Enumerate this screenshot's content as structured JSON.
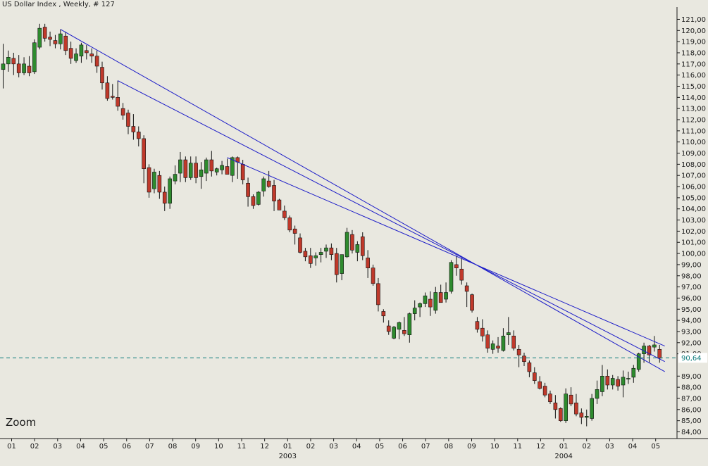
{
  "header": {
    "title": "US Dollar Index , Weekly, # 127"
  },
  "overlay": {
    "zoom_label": "Zoom"
  },
  "colors": {
    "background": "#e9e8e0",
    "up": "#2e8b2e",
    "down": "#c0392b",
    "trendline": "#1c1cc8",
    "last_price_line": "#0b7a7a",
    "axis_text": "#1a1a1a"
  },
  "chart_data": {
    "type": "candlestick",
    "title": "US Dollar Index , Weekly, # 127",
    "ylim": [
      84,
      121.5
    ],
    "y_ticks": [
      "84,00",
      "85,00",
      "86,00",
      "87,00",
      "88,00",
      "89,00",
      "91,00",
      "92,00",
      "93,00",
      "94,00",
      "95,00",
      "96,00",
      "97,00",
      "98,00",
      "99,00",
      "100,00",
      "101,00",
      "102,00",
      "103,00",
      "104,00",
      "105,00",
      "106,00",
      "107,00",
      "108,00",
      "109,00",
      "110,00",
      "111,00",
      "112,00",
      "113,00",
      "114,00",
      "115,00",
      "116,00",
      "117,00",
      "118,00",
      "119,00",
      "120,00",
      "121,00"
    ],
    "x_ticks": [
      "01",
      "02",
      "03",
      "04",
      "05",
      "06",
      "07",
      "08",
      "09",
      "10",
      "11",
      "12",
      "01",
      "02",
      "03",
      "04",
      "05",
      "06",
      "07",
      "08",
      "09",
      "10",
      "11",
      "12",
      "01",
      "02",
      "03",
      "04",
      "05"
    ],
    "year_labels": [
      {
        "label": "2003",
        "tick_index": 12
      },
      {
        "label": "2004",
        "tick_index": 24
      }
    ],
    "last_price": {
      "value": 90.64,
      "label": "90,64"
    },
    "trendlines": [
      {
        "from": {
          "week": 11,
          "value": 120.1
        },
        "to": {
          "week": 127,
          "value": 89.4
        }
      },
      {
        "from": {
          "week": 22,
          "value": 115.5
        },
        "to": {
          "week": 127,
          "value": 90.3
        }
      },
      {
        "from": {
          "week": 43,
          "value": 108.6
        },
        "to": {
          "week": 127,
          "value": 91.7
        }
      }
    ],
    "candles": [
      [
        116.5,
        118.8,
        114.8,
        117.0
      ],
      [
        117.0,
        118.2,
        116.3,
        117.6
      ],
      [
        117.5,
        118.0,
        116.0,
        117.0
      ],
      [
        117.0,
        117.8,
        115.8,
        116.2
      ],
      [
        116.2,
        117.6,
        116.0,
        117.0
      ],
      [
        116.8,
        117.7,
        115.9,
        116.2
      ],
      [
        116.3,
        119.2,
        116.1,
        118.9
      ],
      [
        118.5,
        120.6,
        118.3,
        120.2
      ],
      [
        120.3,
        120.6,
        119.0,
        119.3
      ],
      [
        119.4,
        119.9,
        118.6,
        119.2
      ],
      [
        119.1,
        119.6,
        118.4,
        118.8
      ],
      [
        118.8,
        120.1,
        118.3,
        119.7
      ],
      [
        119.5,
        119.9,
        117.8,
        118.2
      ],
      [
        118.4,
        119.0,
        117.0,
        117.5
      ],
      [
        117.3,
        118.4,
        117.1,
        117.9
      ],
      [
        117.7,
        118.9,
        117.1,
        118.7
      ],
      [
        118.2,
        118.7,
        117.4,
        118.0
      ],
      [
        117.9,
        118.4,
        117.1,
        117.7
      ],
      [
        117.7,
        118.2,
        116.2,
        116.8
      ],
      [
        116.7,
        117.2,
        114.7,
        115.3
      ],
      [
        115.3,
        115.9,
        113.7,
        113.9
      ],
      [
        114.1,
        115.2,
        113.8,
        114.0
      ],
      [
        114.0,
        115.5,
        112.8,
        113.2
      ],
      [
        113.0,
        113.5,
        112.0,
        112.4
      ],
      [
        112.6,
        112.9,
        110.7,
        111.4
      ],
      [
        111.4,
        112.5,
        110.2,
        110.9
      ],
      [
        110.9,
        111.4,
        109.6,
        110.3
      ],
      [
        110.3,
        110.6,
        106.3,
        107.6
      ],
      [
        107.7,
        108.0,
        105.0,
        105.5
      ],
      [
        105.8,
        107.6,
        105.4,
        107.3
      ],
      [
        107.0,
        107.4,
        104.9,
        105.5
      ],
      [
        105.5,
        106.0,
        103.8,
        104.5
      ],
      [
        104.5,
        106.9,
        104.0,
        106.7
      ],
      [
        106.5,
        107.9,
        106.2,
        107.1
      ],
      [
        107.2,
        109.1,
        106.4,
        108.4
      ],
      [
        108.4,
        108.7,
        106.4,
        106.8
      ],
      [
        106.8,
        108.7,
        106.6,
        108.1
      ],
      [
        108.1,
        108.7,
        106.3,
        106.8
      ],
      [
        106.9,
        108.2,
        105.8,
        107.5
      ],
      [
        107.2,
        108.6,
        106.5,
        108.4
      ],
      [
        108.4,
        109.2,
        106.9,
        107.4
      ],
      [
        107.3,
        107.7,
        107.0,
        107.6
      ],
      [
        107.5,
        108.3,
        107.1,
        107.9
      ],
      [
        107.8,
        108.5,
        107.2,
        107.1
      ],
      [
        107.0,
        108.7,
        106.4,
        108.6
      ],
      [
        108.6,
        108.7,
        106.7,
        108.2
      ],
      [
        108.0,
        108.4,
        106.2,
        106.6
      ],
      [
        106.3,
        106.8,
        104.2,
        105.1
      ],
      [
        105.1,
        105.3,
        104.0,
        104.3
      ],
      [
        104.4,
        105.6,
        104.3,
        105.5
      ],
      [
        105.6,
        106.9,
        105.1,
        106.7
      ],
      [
        106.5,
        107.4,
        105.9,
        106.0
      ],
      [
        106.1,
        106.6,
        103.8,
        104.7
      ],
      [
        104.8,
        104.9,
        103.9,
        103.9
      ],
      [
        103.8,
        104.3,
        103.0,
        103.2
      ],
      [
        103.2,
        103.4,
        101.9,
        102.1
      ],
      [
        102.2,
        102.5,
        100.8,
        101.8
      ],
      [
        101.4,
        101.8,
        100.0,
        100.1
      ],
      [
        100.2,
        100.5,
        99.3,
        99.7
      ],
      [
        99.8,
        100.5,
        98.7,
        99.1
      ],
      [
        99.6,
        100.1,
        98.9,
        99.8
      ],
      [
        99.9,
        100.5,
        99.2,
        100.1
      ],
      [
        100.2,
        100.8,
        99.6,
        100.5
      ],
      [
        100.5,
        100.9,
        99.4,
        99.9
      ],
      [
        100.0,
        100.5,
        97.4,
        98.1
      ],
      [
        98.2,
        99.9,
        97.6,
        99.9
      ],
      [
        99.7,
        102.3,
        99.6,
        101.9
      ],
      [
        101.7,
        102.1,
        100.0,
        100.3
      ],
      [
        100.1,
        101.1,
        99.3,
        100.8
      ],
      [
        101.5,
        101.9,
        99.4,
        99.8
      ],
      [
        99.6,
        100.3,
        97.8,
        98.7
      ],
      [
        98.7,
        99.0,
        97.1,
        97.3
      ],
      [
        97.3,
        97.8,
        94.8,
        95.4
      ],
      [
        94.8,
        95.0,
        93.8,
        94.4
      ],
      [
        93.5,
        94.0,
        92.7,
        93.0
      ],
      [
        92.4,
        93.5,
        92.3,
        93.4
      ],
      [
        93.2,
        93.9,
        92.3,
        93.8
      ],
      [
        93.1,
        94.3,
        92.6,
        92.8
      ],
      [
        92.7,
        94.7,
        92.0,
        94.6
      ],
      [
        94.6,
        95.8,
        94.0,
        95.1
      ],
      [
        95.2,
        95.6,
        94.3,
        95.5
      ],
      [
        95.5,
        96.5,
        95.2,
        96.2
      ],
      [
        95.9,
        96.6,
        94.4,
        95.2
      ],
      [
        94.9,
        97.0,
        94.6,
        96.5
      ],
      [
        96.5,
        97.2,
        95.6,
        95.6
      ],
      [
        95.9,
        97.4,
        95.6,
        96.5
      ],
      [
        96.6,
        99.4,
        96.4,
        99.2
      ],
      [
        99.0,
        99.8,
        98.0,
        98.7
      ],
      [
        98.6,
        99.6,
        97.2,
        97.6
      ],
      [
        97.1,
        97.4,
        95.2,
        96.6
      ],
      [
        96.3,
        96.4,
        94.7,
        94.9
      ],
      [
        93.9,
        94.3,
        92.9,
        93.2
      ],
      [
        93.3,
        94.1,
        92.1,
        92.6
      ],
      [
        92.7,
        93.1,
        91.1,
        91.5
      ],
      [
        91.4,
        92.2,
        91.0,
        91.9
      ],
      [
        91.7,
        92.5,
        91.1,
        91.5
      ],
      [
        91.3,
        93.3,
        91.2,
        92.6
      ],
      [
        92.7,
        94.3,
        91.8,
        92.9
      ],
      [
        92.6,
        93.1,
        91.3,
        91.5
      ],
      [
        91.4,
        91.8,
        89.8,
        90.9
      ],
      [
        90.8,
        91.1,
        89.9,
        90.3
      ],
      [
        90.2,
        90.4,
        88.9,
        89.4
      ],
      [
        89.3,
        89.8,
        88.3,
        88.6
      ],
      [
        88.5,
        89.0,
        87.8,
        87.9
      ],
      [
        88.1,
        88.4,
        87.1,
        87.3
      ],
      [
        87.4,
        87.7,
        86.5,
        86.7
      ],
      [
        86.6,
        87.3,
        85.2,
        86.0
      ],
      [
        86.1,
        86.2,
        84.9,
        85.0
      ],
      [
        85.0,
        87.9,
        84.8,
        87.4
      ],
      [
        87.3,
        88.0,
        86.3,
        86.5
      ],
      [
        86.6,
        87.4,
        85.4,
        85.6
      ],
      [
        85.7,
        86.1,
        84.7,
        85.3
      ],
      [
        85.3,
        86.0,
        84.5,
        85.4
      ],
      [
        85.2,
        87.4,
        85.0,
        87.0
      ],
      [
        87.0,
        88.6,
        86.5,
        87.8
      ],
      [
        87.6,
        90.0,
        87.2,
        89.0
      ],
      [
        89.0,
        89.6,
        87.8,
        88.2
      ],
      [
        88.2,
        89.1,
        87.8,
        88.8
      ],
      [
        88.7,
        89.0,
        87.7,
        88.1
      ],
      [
        88.2,
        89.5,
        87.1,
        88.9
      ],
      [
        88.8,
        89.4,
        88.3,
        88.8
      ],
      [
        88.9,
        90.0,
        88.4,
        89.7
      ],
      [
        89.6,
        91.1,
        89.4,
        91.0
      ],
      [
        91.0,
        92.0,
        90.2,
        91.7
      ],
      [
        91.7,
        91.8,
        90.2,
        90.9
      ],
      [
        91.6,
        92.6,
        91.2,
        91.8
      ],
      [
        91.4,
        91.8,
        90.2,
        90.6
      ]
    ]
  }
}
